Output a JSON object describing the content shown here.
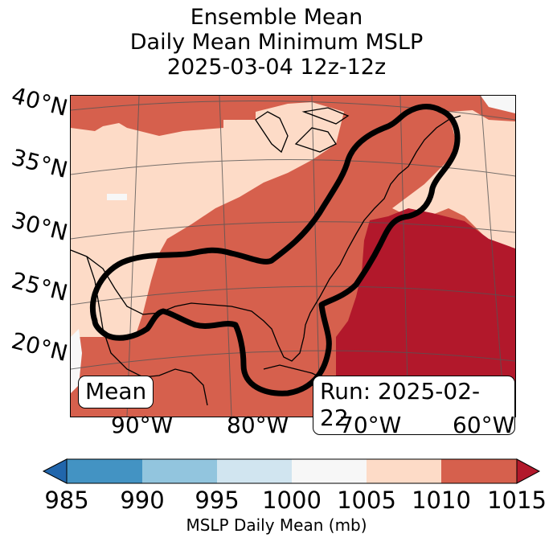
{
  "title": {
    "line1": "Ensemble Mean",
    "line2": "Daily Mean Minimum MSLP",
    "line3": "2025-03-04 12z-12z"
  },
  "map": {
    "lat_labels": [
      "40°N",
      "35°N",
      "30°N",
      "25°N",
      "20°N"
    ],
    "lon_labels": [
      "90°W",
      "80°W",
      "70°W",
      "60°W"
    ],
    "left_box_label": "Mean",
    "right_box_label": "Run: 2025-02-22"
  },
  "colorbar": {
    "ticks": [
      "985",
      "990",
      "995",
      "1000",
      "1005",
      "1010",
      "1015"
    ],
    "label": "MSLP Daily Mean (mb)",
    "colors": {
      "below_985": "#2166ac",
      "985_990": "#4393c3",
      "990_995": "#92c5de",
      "995_1000": "#d1e5f0",
      "1000_1005": "#f7f7f7",
      "1005_1010": "#fddbc7",
      "1010_1015": "#d6604d",
      "above_1015": "#b2182b"
    }
  }
}
